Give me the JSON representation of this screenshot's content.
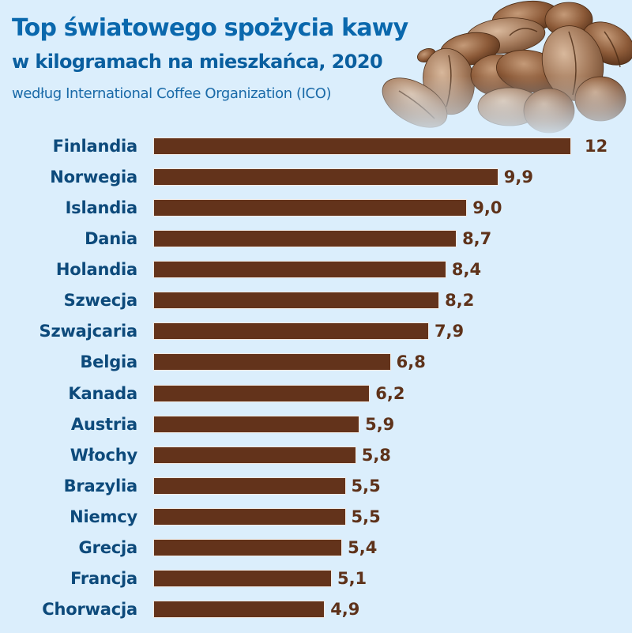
{
  "header": {
    "title": "Top światowego spożycia kawy",
    "subtitle": "w kilogramach na mieszkańca, 2020",
    "source": "według International Coffee Organization (ICO)"
  },
  "decoration": {
    "image": "coffee-beans-illustration"
  },
  "colors": {
    "background": "#dbeefc",
    "title": "#0a68ad",
    "label": "#0d4a7b",
    "bar": "#63331b",
    "value": "#5e321a"
  },
  "rows": [
    {
      "country": "Finlandia",
      "value": 12,
      "label": "12"
    },
    {
      "country": "Norwegia",
      "value": 9.9,
      "label": "9,9"
    },
    {
      "country": "Islandia",
      "value": 9.0,
      "label": "9,0"
    },
    {
      "country": "Dania",
      "value": 8.7,
      "label": "8,7"
    },
    {
      "country": "Holandia",
      "value": 8.4,
      "label": "8,4"
    },
    {
      "country": "Szwecja",
      "value": 8.2,
      "label": "8,2"
    },
    {
      "country": "Szwajcaria",
      "value": 7.9,
      "label": "7,9"
    },
    {
      "country": "Belgia",
      "value": 6.8,
      "label": "6,8"
    },
    {
      "country": "Kanada",
      "value": 6.2,
      "label": "6,2"
    },
    {
      "country": "Austria",
      "value": 5.9,
      "label": "5,9"
    },
    {
      "country": "Włochy",
      "value": 5.8,
      "label": "5,8"
    },
    {
      "country": "Brazylia",
      "value": 5.5,
      "label": "5,5"
    },
    {
      "country": "Niemcy",
      "value": 5.5,
      "label": "5,5"
    },
    {
      "country": "Grecja",
      "value": 5.4,
      "label": "5,4"
    },
    {
      "country": "Francja",
      "value": 5.1,
      "label": "5,1"
    },
    {
      "country": "Chorwacja",
      "value": 4.9,
      "label": "4,9"
    }
  ],
  "chart_data": {
    "type": "bar",
    "orientation": "horizontal",
    "title": "Top światowego spożycia kawy",
    "subtitle": "w kilogramach na mieszkańca, 2020",
    "source": "według International Coffee Organization (ICO)",
    "xlabel": "",
    "ylabel": "",
    "unit": "kg per capita",
    "year": 2020,
    "categories": [
      "Finlandia",
      "Norwegia",
      "Islandia",
      "Dania",
      "Holandia",
      "Szwecja",
      "Szwajcaria",
      "Belgia",
      "Kanada",
      "Austria",
      "Włochy",
      "Brazylia",
      "Niemcy",
      "Grecja",
      "Francja",
      "Chorwacja"
    ],
    "values": [
      12,
      9.9,
      9.0,
      8.7,
      8.4,
      8.2,
      7.9,
      6.8,
      6.2,
      5.9,
      5.8,
      5.5,
      5.5,
      5.4,
      5.1,
      4.9
    ],
    "data_labels": [
      "12",
      "9,9",
      "9,0",
      "8,7",
      "8,4",
      "8,2",
      "7,9",
      "6,8",
      "6,2",
      "5,9",
      "5,8",
      "5,5",
      "5,5",
      "5,4",
      "5,1",
      "4,9"
    ],
    "grid": false,
    "legend": null,
    "axis_visible": false
  }
}
